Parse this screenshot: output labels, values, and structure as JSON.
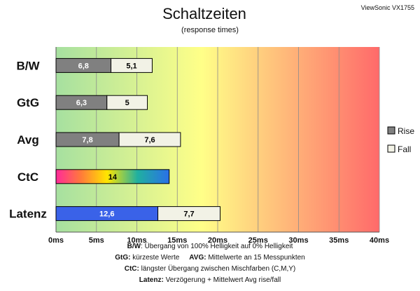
{
  "chart_data": {
    "type": "bar",
    "orientation": "horizontal",
    "stacked": true,
    "title": "Schaltzeiten",
    "subtitle": "(response times)",
    "brand": "ViewSonic VX1755",
    "categories": [
      "B/W",
      "GtG",
      "Avg",
      "CtC",
      "Latenz"
    ],
    "series": [
      {
        "name": "Rise",
        "values": [
          6.8,
          6.3,
          7.8,
          14,
          12.6
        ],
        "color": "#808080"
      },
      {
        "name": "Fall",
        "values": [
          5.1,
          5,
          7.6,
          null,
          7.7
        ],
        "color": "#f2f2e6"
      }
    ],
    "special_fills": {
      "CtC": "rainbow-gradient",
      "Latenz": "#3a62e8"
    },
    "xlim": [
      0,
      40
    ],
    "xticks": [
      0,
      5,
      10,
      15,
      20,
      25,
      30,
      35,
      40
    ],
    "xtick_labels": [
      "0ms",
      "5ms",
      "10ms",
      "15ms",
      "20ms",
      "25ms",
      "30ms",
      "35ms",
      "40ms"
    ],
    "data_labels": [
      [
        "6,8",
        "5,1"
      ],
      [
        "6,3",
        "5"
      ],
      [
        "7,8",
        "7,6"
      ],
      [
        "14",
        null
      ],
      [
        "12,6",
        "7,7"
      ]
    ],
    "background_gradient": [
      "#a6e0a0",
      "#ffff88",
      "#ff6a6a"
    ],
    "grid": true,
    "legend_position": "right"
  },
  "legend": {
    "rise": "Rise",
    "fall": "Fall"
  },
  "notes": [
    {
      "bold": "B/W",
      "text": ":  Übergang von 100% Helligkeit auf 0% Helligkeit"
    },
    {
      "bold": "GtG:",
      "text": " kürzeste  Werte",
      "bold2": "AVG:",
      "text2": " Mittelwerte  an 15 Messpunkten"
    },
    {
      "bold": "CtC:",
      "text": " längster Übergang  zwischen Mischfarben (C,M,Y)"
    },
    {
      "bold": "Latenz:",
      "text": " Verzögerung  + Mittelwert Avg rise/fall"
    }
  ]
}
